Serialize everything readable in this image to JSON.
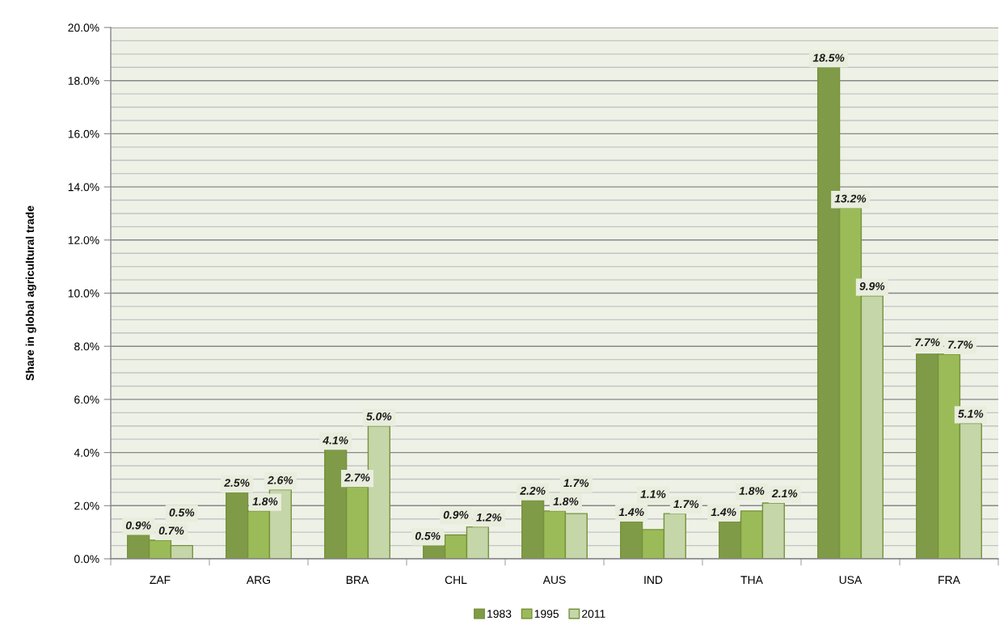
{
  "chart_data": {
    "type": "bar",
    "ylabel": "Share in global agricultural trade",
    "categories": [
      "ZAF",
      "ARG",
      "BRA",
      "CHL",
      "AUS",
      "IND",
      "THA",
      "USA",
      "FRA"
    ],
    "series": [
      {
        "name": "1983",
        "color": "#7f9b48",
        "values": [
          0.9,
          2.5,
          4.1,
          0.5,
          2.2,
          1.4,
          1.4,
          18.5,
          7.7
        ],
        "value_labels": [
          "0.9%",
          "2.5%",
          "4.1%",
          "0.5%",
          "2.2%",
          "1.4%",
          "1.4%",
          "18.5%",
          "7.7%"
        ]
      },
      {
        "name": "1995",
        "color": "#9bbb59",
        "values": [
          0.7,
          1.8,
          2.7,
          0.9,
          1.8,
          1.1,
          1.8,
          13.2,
          7.7
        ],
        "value_labels": [
          "0.7%",
          "1.8%",
          "2.7%",
          "0.9%",
          "1.8%",
          "1.1%",
          "1.8%",
          "13.2%",
          "7.7%"
        ]
      },
      {
        "name": "2011",
        "color": "#c5d6a9",
        "values": [
          0.5,
          2.6,
          5.0,
          1.2,
          1.7,
          1.7,
          2.1,
          9.9,
          5.1
        ],
        "value_labels": [
          "0.5%",
          "2.6%",
          "5.0%",
          "1.2%",
          "1.7%",
          "1.7%",
          "2.1%",
          "9.9%",
          "5.1%"
        ]
      }
    ],
    "ylim": [
      0,
      20
    ],
    "yticks": [
      {
        "value": 0,
        "label": "0.0%"
      },
      {
        "value": 0.5,
        "label": null
      },
      {
        "value": 1,
        "label": null
      },
      {
        "value": 1.5,
        "label": null
      },
      {
        "value": 2,
        "label": "2.0%"
      },
      {
        "value": 2.5,
        "label": null
      },
      {
        "value": 3,
        "label": null
      },
      {
        "value": 3.5,
        "label": null
      },
      {
        "value": 4,
        "label": "4.0%"
      },
      {
        "value": 4.5,
        "label": null
      },
      {
        "value": 5,
        "label": null
      },
      {
        "value": 5.5,
        "label": null
      },
      {
        "value": 6,
        "label": "6.0%"
      },
      {
        "value": 6.5,
        "label": null
      },
      {
        "value": 7,
        "label": null
      },
      {
        "value": 7.5,
        "label": null
      },
      {
        "value": 8,
        "label": "8.0%"
      },
      {
        "value": 8.5,
        "label": null
      },
      {
        "value": 9,
        "label": null
      },
      {
        "value": 9.5,
        "label": null
      },
      {
        "value": 10,
        "label": "10.0%"
      },
      {
        "value": 10.5,
        "label": null
      },
      {
        "value": 11,
        "label": null
      },
      {
        "value": 11.5,
        "label": null
      },
      {
        "value": 12,
        "label": "12.0%"
      },
      {
        "value": 12.5,
        "label": null
      },
      {
        "value": 13,
        "label": null
      },
      {
        "value": 13.5,
        "label": null
      },
      {
        "value": 14,
        "label": "14.0%"
      },
      {
        "value": 14.5,
        "label": null
      },
      {
        "value": 15,
        "label": null
      },
      {
        "value": 15.5,
        "label": null
      },
      {
        "value": 16,
        "label": "16.0%"
      },
      {
        "value": 16.5,
        "label": null
      },
      {
        "value": 17,
        "label": null
      },
      {
        "value": 17.5,
        "label": null
      },
      {
        "value": 18,
        "label": "18.0%"
      },
      {
        "value": 18.5,
        "label": null
      },
      {
        "value": 19,
        "label": null
      },
      {
        "value": 19.5,
        "label": null
      },
      {
        "value": 20,
        "label": "20.0%"
      }
    ],
    "grid": "y",
    "legend": "bottom"
  }
}
